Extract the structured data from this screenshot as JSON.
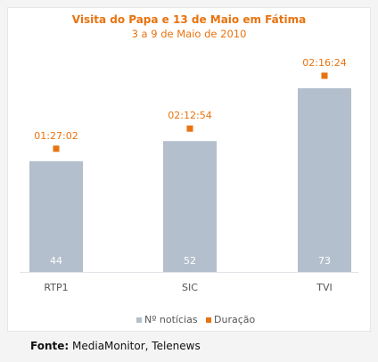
{
  "chart_data": {
    "type": "bar",
    "title": "Visita do Papa e 13 de Maio em Fátima",
    "subtitle": "3 a 9 de Maio de 2010",
    "categories": [
      "RTP1",
      "SIC",
      "TVI"
    ],
    "series": [
      {
        "name": "Nº notícias",
        "type": "bar",
        "values": [
          44,
          52,
          73
        ],
        "value_labels": [
          "44",
          "52",
          "73"
        ],
        "color": "#b3bfcc"
      },
      {
        "name": "Duração",
        "type": "marker",
        "values": [
          "01:27:02",
          "02:12:54",
          "02:16:24"
        ],
        "color": "#e8730f"
      }
    ],
    "ylim": [
      0,
      79
    ],
    "legend": "bottom-center",
    "grid": false
  },
  "source": {
    "label": "Fonte:",
    "text": "MediaMonitor, Telenews"
  }
}
